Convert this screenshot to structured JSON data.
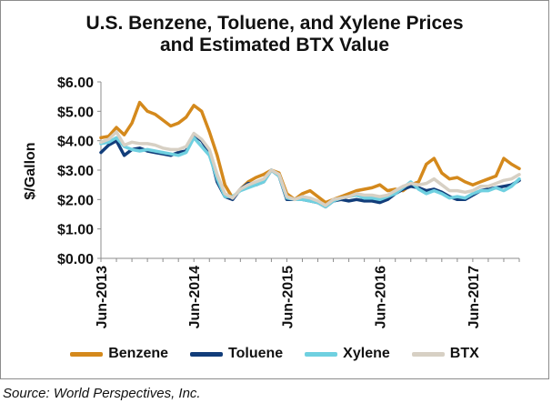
{
  "chart_data": {
    "type": "line",
    "title": "U.S. Benzene, Toluene, and Xylene Prices\nand Estimated BTX Value",
    "ylabel": "$/Gallon",
    "xlabel": "",
    "ylim": [
      0,
      6
    ],
    "yticks": [
      "$0.00",
      "$1.00",
      "$2.00",
      "$3.00",
      "$4.00",
      "$5.00",
      "$6.00"
    ],
    "ytick_values": [
      0,
      1,
      2,
      3,
      4,
      5,
      6
    ],
    "xticks": [
      "Jun-2013",
      "Jun-2014",
      "Jun-2015",
      "Jun-2016",
      "Jun-2017"
    ],
    "xtick_positions": [
      0,
      12,
      24,
      36,
      48
    ],
    "xlim": [
      0,
      54
    ],
    "grid": false,
    "legend_position": "bottom",
    "x": [
      0,
      1,
      2,
      3,
      4,
      5,
      6,
      7,
      8,
      9,
      10,
      11,
      12,
      13,
      14,
      15,
      16,
      17,
      18,
      19,
      20,
      21,
      22,
      23,
      24,
      25,
      26,
      27,
      28,
      29,
      30,
      31,
      32,
      33,
      34,
      35,
      36,
      37,
      38,
      39,
      40,
      41,
      42,
      43,
      44,
      45,
      46,
      47,
      48,
      49,
      50,
      51,
      52,
      53,
      54
    ],
    "series": [
      {
        "name": "Benzene",
        "color": "#D4891C",
        "values": [
          4.1,
          4.15,
          4.45,
          4.2,
          4.6,
          5.3,
          5.0,
          4.9,
          4.7,
          4.5,
          4.6,
          4.8,
          5.2,
          5.0,
          4.3,
          3.5,
          2.5,
          2.05,
          2.35,
          2.6,
          2.75,
          2.85,
          3.0,
          2.9,
          2.2,
          2.0,
          2.2,
          2.3,
          2.1,
          1.9,
          2.0,
          2.1,
          2.2,
          2.3,
          2.35,
          2.4,
          2.5,
          2.3,
          2.35,
          2.3,
          2.5,
          2.6,
          3.2,
          3.4,
          2.9,
          2.7,
          2.75,
          2.6,
          2.5,
          2.6,
          2.7,
          2.8,
          3.4,
          3.2,
          3.05
        ]
      },
      {
        "name": "Toluene",
        "color": "#123D7A",
        "values": [
          3.6,
          3.85,
          4.0,
          3.5,
          3.7,
          3.75,
          3.65,
          3.6,
          3.55,
          3.5,
          3.6,
          3.65,
          4.2,
          4.0,
          3.6,
          2.6,
          2.1,
          2.0,
          2.35,
          2.55,
          2.5,
          2.6,
          3.0,
          2.8,
          2.0,
          2.0,
          2.0,
          1.95,
          1.9,
          1.75,
          1.95,
          2.0,
          1.95,
          2.0,
          1.95,
          1.95,
          1.9,
          2.0,
          2.2,
          2.35,
          2.45,
          2.4,
          2.3,
          2.35,
          2.25,
          2.1,
          2.0,
          2.0,
          2.15,
          2.3,
          2.35,
          2.4,
          2.45,
          2.5,
          2.65
        ]
      },
      {
        "name": "Xylene",
        "color": "#6FD0E0",
        "values": [
          3.9,
          3.95,
          4.1,
          3.8,
          3.7,
          3.65,
          3.7,
          3.65,
          3.6,
          3.55,
          3.5,
          3.6,
          4.1,
          3.8,
          3.5,
          2.7,
          2.1,
          2.1,
          2.3,
          2.4,
          2.5,
          2.6,
          3.0,
          2.8,
          2.05,
          2.0,
          2.0,
          1.95,
          1.9,
          1.75,
          1.95,
          2.05,
          2.1,
          2.15,
          2.05,
          2.05,
          2.0,
          2.1,
          2.2,
          2.4,
          2.6,
          2.35,
          2.2,
          2.3,
          2.2,
          2.05,
          2.1,
          2.05,
          2.2,
          2.3,
          2.3,
          2.4,
          2.3,
          2.45,
          2.7
        ]
      },
      {
        "name": "BTX",
        "color": "#D7D0C4",
        "values": [
          3.95,
          4.05,
          4.3,
          3.85,
          3.95,
          3.9,
          3.9,
          3.85,
          3.75,
          3.7,
          3.7,
          3.8,
          4.25,
          4.05,
          3.7,
          2.85,
          2.2,
          2.05,
          2.35,
          2.5,
          2.6,
          2.7,
          3.0,
          2.85,
          2.1,
          2.0,
          2.1,
          2.05,
          1.95,
          1.8,
          2.0,
          2.05,
          2.1,
          2.2,
          2.15,
          2.15,
          2.1,
          2.15,
          2.3,
          2.45,
          2.55,
          2.5,
          2.55,
          2.7,
          2.5,
          2.3,
          2.3,
          2.25,
          2.3,
          2.45,
          2.45,
          2.55,
          2.65,
          2.7,
          2.85
        ]
      }
    ]
  },
  "source": "Source: World Perspectives, Inc."
}
